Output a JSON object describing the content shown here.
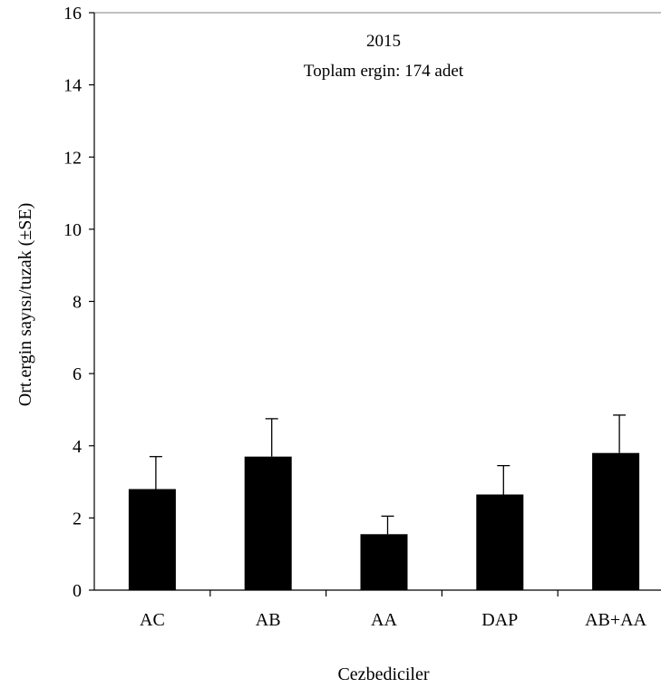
{
  "chart_data": {
    "type": "bar",
    "categories": [
      "AC",
      "AB",
      "AA",
      "DAP",
      "AB+AA"
    ],
    "series": [
      {
        "values": [
          2.8,
          3.7,
          1.55,
          2.65,
          3.8
        ],
        "errors": [
          0.9,
          1.05,
          0.5,
          0.8,
          1.05
        ]
      }
    ],
    "xlabel": "Cezbediciler",
    "ylabel": "Ort.ergin sayısı/tuzak (±SE)",
    "ylim": [
      0,
      16
    ],
    "yticks": [
      0,
      2,
      4,
      6,
      8,
      10,
      12,
      14,
      16
    ],
    "annotations": [
      "2015",
      "Toplam ergin: 174 adet"
    ],
    "grid": false,
    "bar_color": "#000000"
  }
}
